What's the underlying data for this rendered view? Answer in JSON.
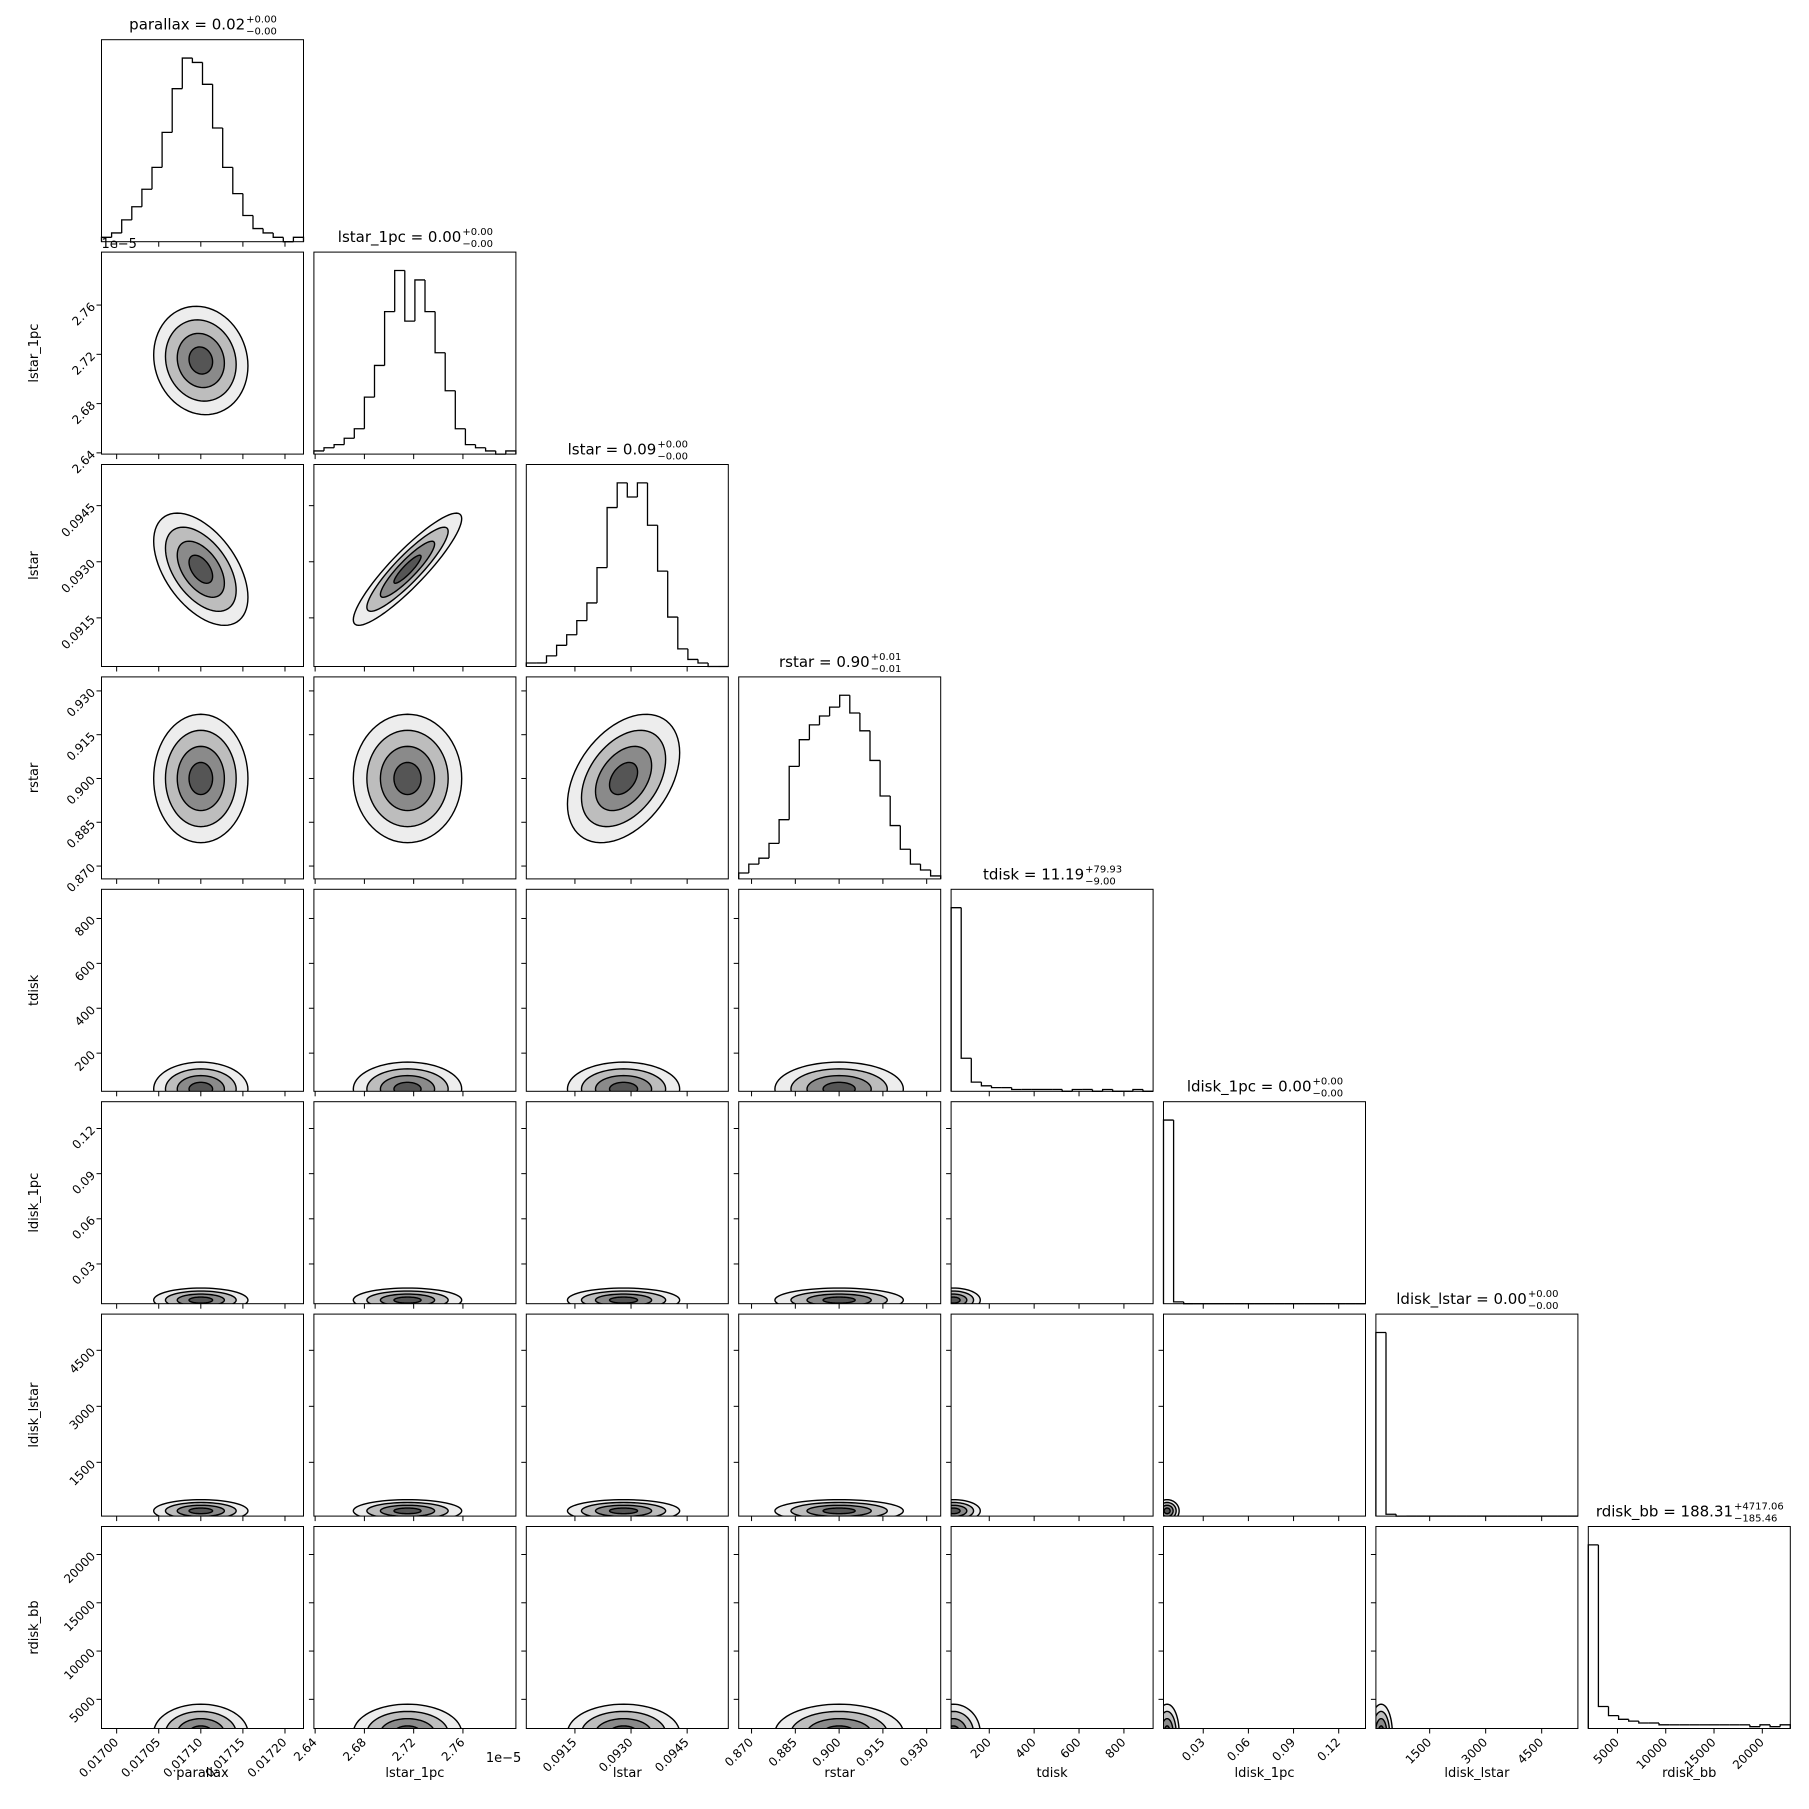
{
  "chart_data": {
    "type": "corner",
    "contour_levels": [
      0.5,
      1,
      1.5,
      2
    ],
    "parameters": [
      {
        "name": "parallax",
        "title": "parallax = 0.02",
        "title_plus": "+0.00",
        "title_minus": "−0.00",
        "lim": [
          0.016982,
          0.017222
        ],
        "ticks": [
          {
            "value": 0.017,
            "label": "0.01700"
          },
          {
            "value": 0.01705,
            "label": "0.01705"
          },
          {
            "value": 0.0171,
            "label": "0.01710"
          },
          0.01715,
          {
            "value": 0.0172,
            "label": "0.01720"
          }
        ],
        "bins": [
          0.016982,
          0.016994,
          0.017006,
          0.017018,
          0.01703,
          0.017042,
          0.017054,
          0.017066,
          0.017078,
          0.01709,
          0.017102,
          0.017114,
          0.017126,
          0.017138,
          0.01715,
          0.017162,
          0.017174,
          0.017186,
          0.017198,
          0.01721,
          0.017222
        ],
        "counts": [
          1,
          2,
          5,
          8,
          12,
          17,
          25,
          35,
          42,
          41,
          36,
          26,
          17,
          11,
          6,
          3,
          2,
          1,
          0,
          1
        ],
        "center": 0.0171,
        "sigma": 2.8e-05
      },
      {
        "name": "lstar_1pc",
        "title": "lstar_1pc = 0.00",
        "title_plus": "+0.00",
        "title_minus": "−0.00",
        "offset_text": "1e−5",
        "lim": [
          2.639,
          2.803
        ],
        "ticks": [
          2.64,
          2.68,
          2.72,
          2.76
        ],
        "bins": [
          2.639,
          2.6472,
          2.6554,
          2.6636,
          2.6718,
          2.68,
          2.6882,
          2.6964,
          2.7046,
          2.7128,
          2.721,
          2.7292,
          2.7374,
          2.7456,
          2.7538,
          2.762,
          2.7702,
          2.7784,
          2.7866,
          2.7948,
          2.803
        ],
        "counts": [
          1,
          2,
          3,
          5,
          8,
          18,
          28,
          45,
          58,
          42,
          55,
          45,
          32,
          20,
          8,
          3,
          2,
          1,
          0,
          1
        ],
        "center": 2.715,
        "sigma": 0.022
      },
      {
        "name": "lstar",
        "title": "lstar = 0.09",
        "title_plus": "+0.00",
        "title_minus": "−0.00",
        "lim": [
          0.0902,
          0.0956
        ],
        "ticks": [
          0.0915,
          {
            "value": 0.093,
            "label": "0.0930"
          },
          0.0945
        ],
        "bins": [
          0.0902,
          0.09047,
          0.09074,
          0.09101,
          0.09128,
          0.09155,
          0.09182,
          0.09209,
          0.09236,
          0.09263,
          0.0929,
          0.09317,
          0.09344,
          0.09371,
          0.09398,
          0.09425,
          0.09452,
          0.09479,
          0.09506,
          0.09533,
          0.0956
        ],
        "counts": [
          1,
          1,
          3,
          6,
          9,
          13,
          18,
          28,
          45,
          52,
          48,
          52,
          40,
          27,
          14,
          5,
          2,
          1,
          0,
          0
        ],
        "center": 0.0928,
        "sigma": 0.00075
      },
      {
        "name": "rstar",
        "title": "rstar = 0.90",
        "title_plus": "+0.01",
        "title_minus": "−0.01",
        "lim": [
          0.8656,
          0.9348
        ],
        "ticks": [
          {
            "value": 0.87,
            "label": "0.870"
          },
          0.885,
          {
            "value": 0.9,
            "label": "0.900"
          },
          0.915,
          {
            "value": 0.93,
            "label": "0.930"
          }
        ],
        "bins": [
          0.8656,
          0.86906,
          0.87252,
          0.87598,
          0.87944,
          0.8829,
          0.88636,
          0.88982,
          0.89328,
          0.89674,
          0.9002,
          0.90366,
          0.90712,
          0.91058,
          0.91404,
          0.9175,
          0.92096,
          0.92442,
          0.92788,
          0.93134,
          0.9348
        ],
        "counts": [
          2,
          5,
          7,
          12,
          20,
          38,
          47,
          52,
          55,
          58,
          62,
          56,
          50,
          40,
          28,
          18,
          10,
          5,
          3,
          1
        ],
        "center": 0.9,
        "sigma": 0.011
      },
      {
        "name": "tdisk",
        "title": "tdisk = 11.19",
        "title_plus": "+79.93",
        "title_minus": "−9.00",
        "lim": [
          30,
          930
        ],
        "ticks": [
          200,
          400,
          600,
          800
        ],
        "bins": [
          30,
          75,
          120,
          165,
          210,
          255,
          300,
          345,
          390,
          435,
          480,
          525,
          570,
          615,
          660,
          705,
          750,
          795,
          840,
          885,
          930
        ],
        "counts": [
          100,
          18,
          5,
          3,
          2,
          2,
          1,
          1,
          1,
          1,
          1,
          0,
          1,
          1,
          0,
          1,
          0,
          0,
          1,
          0
        ],
        "center": 40,
        "sigma": 60
      },
      {
        "name": "ldisk_1pc",
        "title": "ldisk_1pc = 0.00",
        "title_plus": "+0.00",
        "title_minus": "−0.00",
        "lim": [
          0.0036,
          0.1378
        ],
        "ticks": [
          0.03,
          0.06,
          0.09,
          0.12
        ],
        "bins": [
          0.0036,
          0.01031,
          0.01702,
          0.02373,
          0.03044,
          0.03715,
          0.04386,
          0.05057,
          0.05728,
          0.06399,
          0.0707,
          0.07741,
          0.08412,
          0.09083,
          0.09754,
          0.10425,
          0.11096,
          0.11767,
          0.12438,
          0.13109,
          0.1378
        ],
        "counts": [
          100,
          1,
          0,
          0,
          0,
          0,
          0,
          0,
          0,
          0,
          0,
          0,
          0,
          0,
          0,
          0,
          0,
          0,
          0,
          0
        ],
        "center": 0.006,
        "sigma": 0.004
      },
      {
        "name": "ldisk_lstar",
        "title": "ldisk_lstar = 0.00",
        "title_plus": "+0.00",
        "title_minus": "−0.00",
        "lim": [
          60,
          5470
        ],
        "ticks": [
          1500,
          3000,
          4500
        ],
        "bins": [
          60,
          330.5,
          601,
          871.5,
          1142,
          1412.5,
          1683,
          1953.5,
          2224,
          2494.5,
          2765,
          3035.5,
          3306,
          3576.5,
          3847,
          4117.5,
          4388,
          4658.5,
          4929,
          5199.5,
          5470
        ],
        "counts": [
          100,
          1,
          0,
          0,
          0,
          0,
          0,
          0,
          0,
          0,
          0,
          0,
          0,
          0,
          0,
          0,
          0,
          0,
          0,
          0
        ],
        "center": 200,
        "sigma": 150
      },
      {
        "name": "rdisk_bb",
        "title": "rdisk_bb = 188.31",
        "title_plus": "+4717.06",
        "title_minus": "−185.46",
        "lim": [
          1980,
          22900
        ],
        "ticks": [
          5000,
          10000,
          15000,
          20000
        ],
        "bins": [
          1980,
          3026,
          4072,
          5118,
          6164,
          7210,
          8256,
          9302,
          10348,
          11394,
          12440,
          13486,
          14532,
          15578,
          16624,
          17670,
          18716,
          19762,
          20808,
          21854,
          22900
        ],
        "counts": [
          100,
          12,
          7,
          5,
          4,
          3,
          3,
          2,
          2,
          2,
          2,
          2,
          2,
          2,
          2,
          2,
          1,
          2,
          1,
          2
        ],
        "center": 1500,
        "sigma": 1500
      }
    ],
    "correlations": [
      {
        "x": "parallax",
        "y": "lstar_1pc",
        "r": -0.1
      },
      {
        "x": "parallax",
        "y": "lstar",
        "r": -0.5
      },
      {
        "x": "lstar_1pc",
        "y": "lstar",
        "r": 0.9
      },
      {
        "x": "lstar",
        "y": "rstar",
        "r": 0.4
      }
    ]
  }
}
